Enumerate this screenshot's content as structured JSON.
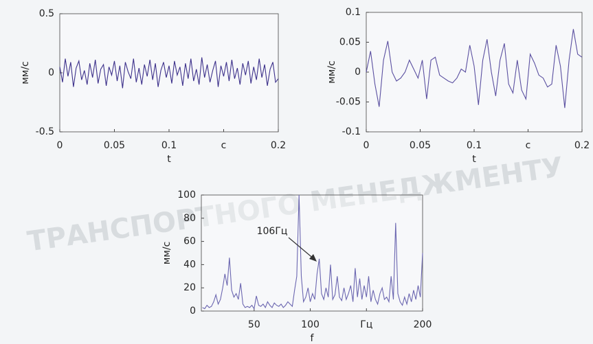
{
  "watermark": "ТРАНСПОРТНОГО МЕНЕДЖМЕНТУ",
  "chart_data": [
    {
      "type": "line",
      "ylabel": "мм/с",
      "xlabel": "t",
      "color": "#3b2f8a",
      "xlim": [
        0,
        0.2
      ],
      "ylim": [
        -0.5,
        0.5
      ],
      "xticks": [
        0,
        0.05,
        0.1,
        {
          "value": 0.15,
          "label": "c"
        },
        0.2
      ],
      "yticks": [
        -0.5,
        0,
        0.5
      ],
      "x": [
        0,
        0.0025,
        0.005,
        0.0075,
        0.01,
        0.0125,
        0.015,
        0.0175,
        0.02,
        0.0225,
        0.025,
        0.0275,
        0.03,
        0.0325,
        0.035,
        0.0375,
        0.04,
        0.0425,
        0.045,
        0.0475,
        0.05,
        0.0525,
        0.055,
        0.0575,
        0.06,
        0.0625,
        0.065,
        0.0675,
        0.07,
        0.0725,
        0.075,
        0.0775,
        0.08,
        0.0825,
        0.085,
        0.0875,
        0.09,
        0.0925,
        0.095,
        0.0975,
        0.1,
        0.1025,
        0.105,
        0.1075,
        0.11,
        0.1125,
        0.115,
        0.1175,
        0.12,
        0.1225,
        0.125,
        0.1275,
        0.13,
        0.1325,
        0.135,
        0.1375,
        0.14,
        0.1425,
        0.145,
        0.1475,
        0.15,
        0.1525,
        0.155,
        0.1575,
        0.16,
        0.1625,
        0.165,
        0.1675,
        0.17,
        0.1725,
        0.175,
        0.1775,
        0.18,
        0.1825,
        0.185,
        0.1875,
        0.19,
        0.1925,
        0.195,
        0.1975,
        0.2
      ],
      "values": [
        0.05,
        -0.08,
        0.12,
        -0.03,
        0.09,
        -0.12,
        0.04,
        0.1,
        -0.06,
        0.02,
        -0.1,
        0.08,
        -0.04,
        0.11,
        -0.09,
        0.03,
        0.07,
        -0.11,
        0.05,
        -0.02,
        0.1,
        -0.07,
        0.06,
        -0.13,
        0.09,
        0.01,
        -0.05,
        0.12,
        -0.08,
        0.04,
        -0.1,
        0.07,
        -0.03,
        0.11,
        -0.06,
        0.08,
        -0.12,
        0.02,
        0.09,
        -0.04,
        0.06,
        -0.09,
        0.1,
        -0.02,
        0.05,
        -0.11,
        0.08,
        -0.05,
        0.12,
        -0.07,
        0.03,
        -0.1,
        0.13,
        -0.04,
        0.07,
        -0.08,
        0.02,
        0.1,
        -0.12,
        0.06,
        -0.03,
        0.09,
        -0.07,
        0.11,
        -0.05,
        0.04,
        -0.1,
        0.08,
        -0.02,
        0.1,
        -0.09,
        0.05,
        -0.06,
        0.12,
        -0.04,
        0.07,
        -0.11,
        0.03,
        0.09,
        -0.08,
        -0.05
      ]
    },
    {
      "type": "line",
      "ylabel": "мм/с",
      "xlabel": "t",
      "color": "#5a4fa0",
      "xlim": [
        0,
        0.2
      ],
      "ylim": [
        -0.1,
        0.1
      ],
      "xticks": [
        0,
        0.05,
        0.1,
        {
          "value": 0.15,
          "label": "c"
        },
        0.2
      ],
      "yticks": [
        -0.1,
        -0.05,
        0,
        0.05,
        0.1
      ],
      "x": [
        0,
        0.004,
        0.008,
        0.012,
        0.016,
        0.02,
        0.024,
        0.028,
        0.032,
        0.036,
        0.04,
        0.044,
        0.048,
        0.052,
        0.056,
        0.06,
        0.064,
        0.068,
        0.072,
        0.076,
        0.08,
        0.084,
        0.088,
        0.092,
        0.096,
        0.1,
        0.104,
        0.108,
        0.112,
        0.116,
        0.12,
        0.124,
        0.128,
        0.132,
        0.136,
        0.14,
        0.144,
        0.148,
        0.152,
        0.156,
        0.16,
        0.164,
        0.168,
        0.172,
        0.176,
        0.18,
        0.184,
        0.188,
        0.192,
        0.196,
        0.2
      ],
      "values": [
        0,
        0.035,
        -0.02,
        -0.058,
        0.02,
        0.052,
        0,
        -0.015,
        -0.01,
        0,
        0.02,
        0.005,
        -0.01,
        0.02,
        -0.045,
        0.02,
        0.025,
        -0.005,
        -0.01,
        -0.015,
        -0.018,
        -0.01,
        0.005,
        0,
        0.045,
        0.01,
        -0.055,
        0.02,
        0.055,
        0,
        -0.04,
        0.02,
        0.048,
        -0.02,
        -0.035,
        0.02,
        -0.03,
        -0.045,
        0.03,
        0.015,
        -0.005,
        -0.01,
        -0.025,
        -0.02,
        0.045,
        0.01,
        -0.06,
        0.02,
        0.072,
        0.03,
        0.025
      ]
    },
    {
      "type": "line",
      "ylabel": "мм/с",
      "xlabel": "f",
      "color": "#6b66b0",
      "annotation": "106Гц",
      "xlim": [
        3,
        200
      ],
      "ylim": [
        0,
        100
      ],
      "xticks": [
        50,
        100,
        {
          "value": 150,
          "label": "Гц"
        },
        200
      ],
      "yticks": [
        0,
        20,
        40,
        60,
        80,
        100
      ],
      "x": [
        4,
        6,
        8,
        10,
        12,
        14,
        16,
        18,
        20,
        22,
        24,
        26,
        28,
        30,
        32,
        34,
        36,
        38,
        40,
        42,
        44,
        46,
        48,
        50,
        52,
        54,
        56,
        58,
        60,
        62,
        64,
        66,
        68,
        70,
        72,
        74,
        76,
        78,
        80,
        82,
        84,
        86,
        88,
        90,
        92,
        94,
        96,
        98,
        100,
        102,
        104,
        106,
        108,
        110,
        112,
        114,
        116,
        118,
        120,
        122,
        124,
        126,
        128,
        130,
        132,
        134,
        136,
        138,
        140,
        142,
        144,
        146,
        148,
        150,
        152,
        154,
        156,
        158,
        160,
        162,
        164,
        166,
        168,
        170,
        172,
        174,
        176,
        178,
        180,
        182,
        184,
        186,
        188,
        190,
        192,
        194,
        196,
        198,
        200
      ],
      "values": [
        3,
        2,
        5,
        3,
        4,
        8,
        14,
        6,
        10,
        20,
        32,
        22,
        46,
        18,
        12,
        15,
        10,
        24,
        6,
        3,
        4,
        3,
        5,
        2,
        13,
        5,
        4,
        6,
        3,
        8,
        5,
        3,
        7,
        5,
        4,
        6,
        3,
        5,
        8,
        6,
        4,
        18,
        30,
        100,
        30,
        8,
        12,
        20,
        8,
        15,
        10,
        32,
        45,
        15,
        10,
        20,
        12,
        40,
        10,
        14,
        30,
        12,
        9,
        20,
        10,
        15,
        22,
        8,
        37,
        12,
        28,
        10,
        22,
        12,
        30,
        8,
        18,
        10,
        6,
        15,
        20,
        10,
        12,
        8,
        30,
        10,
        76,
        15,
        8,
        5,
        12,
        6,
        15,
        8,
        18,
        10,
        22,
        12,
        50
      ]
    }
  ]
}
